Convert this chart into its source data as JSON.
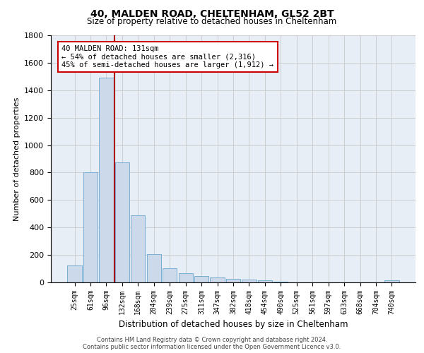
{
  "title1": "40, MALDEN ROAD, CHELTENHAM, GL52 2BT",
  "title2": "Size of property relative to detached houses in Cheltenham",
  "xlabel": "Distribution of detached houses by size in Cheltenham",
  "ylabel": "Number of detached properties",
  "categories": [
    "25sqm",
    "61sqm",
    "96sqm",
    "132sqm",
    "168sqm",
    "204sqm",
    "239sqm",
    "275sqm",
    "311sqm",
    "347sqm",
    "382sqm",
    "418sqm",
    "454sqm",
    "490sqm",
    "525sqm",
    "561sqm",
    "597sqm",
    "633sqm",
    "668sqm",
    "704sqm",
    "740sqm"
  ],
  "values": [
    125,
    800,
    1490,
    875,
    490,
    205,
    105,
    65,
    45,
    35,
    25,
    20,
    15,
    5,
    2,
    1,
    1,
    1,
    1,
    1,
    15
  ],
  "bar_color": "#ccd9ea",
  "bar_edge_color": "#7aaed4",
  "plot_bg_color": "#e8eef6",
  "background_color": "#ffffff",
  "grid_color": "#c8c8c8",
  "vline_color": "#aa0000",
  "vline_x_index": 2,
  "annotation_text_line1": "40 MALDEN ROAD: 131sqm",
  "annotation_text_line2": "← 54% of detached houses are smaller (2,316)",
  "annotation_text_line3": "45% of semi-detached houses are larger (1,912) →",
  "annotation_box_color": "#cc0000",
  "footer1": "Contains HM Land Registry data © Crown copyright and database right 2024.",
  "footer2": "Contains public sector information licensed under the Open Government Licence v3.0.",
  "ylim": [
    0,
    1800
  ],
  "yticks": [
    0,
    200,
    400,
    600,
    800,
    1000,
    1200,
    1400,
    1600,
    1800
  ]
}
